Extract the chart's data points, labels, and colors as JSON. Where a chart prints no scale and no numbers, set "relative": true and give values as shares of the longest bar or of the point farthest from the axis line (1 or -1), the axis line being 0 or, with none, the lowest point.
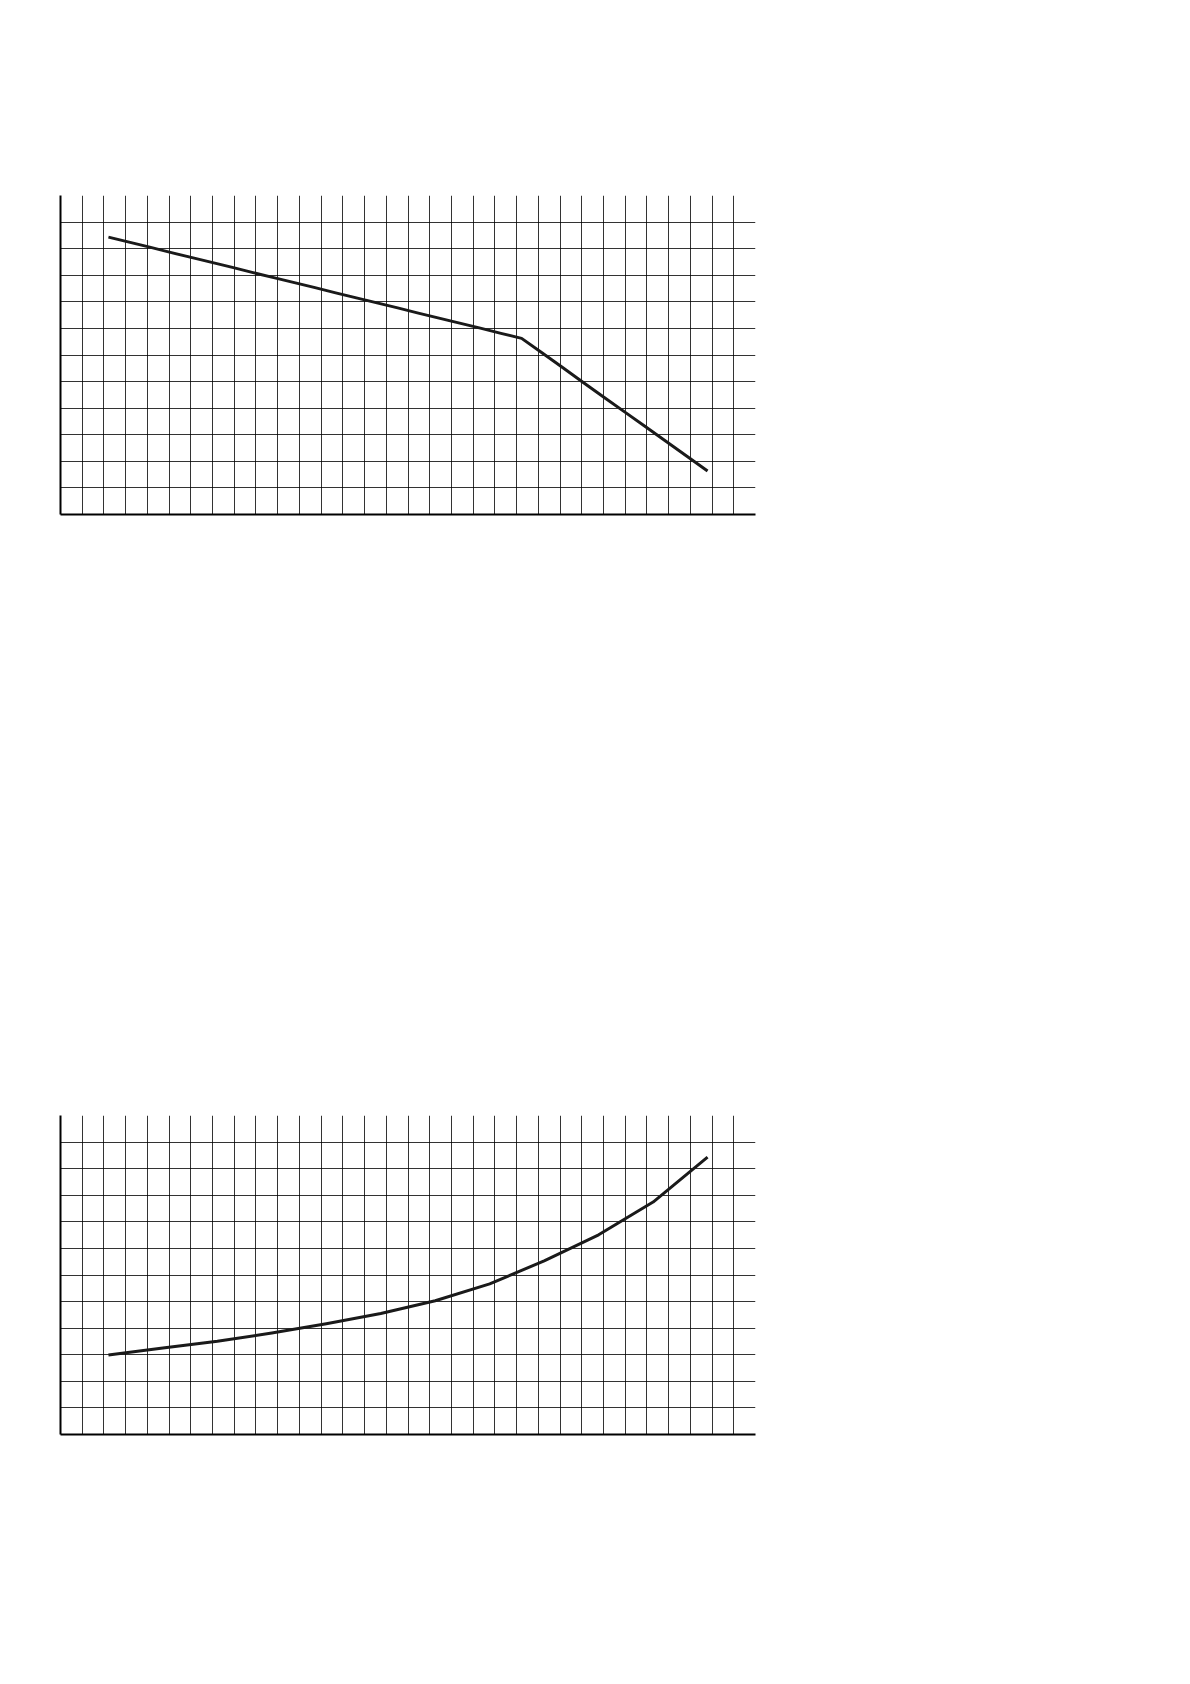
{
  "chart_data": [
    {
      "type": "line",
      "relative": true,
      "grid": true,
      "categories": [
        null,
        null,
        null,
        null,
        null,
        null,
        null,
        null,
        null,
        null,
        null,
        null,
        null,
        null,
        null,
        null,
        null,
        null,
        null,
        null,
        null,
        null,
        null,
        null,
        null,
        null,
        null,
        null,
        null,
        null
      ],
      "series": [
        {
          "color": "#1a1a1a",
          "values": [
            1.0,
            0.982,
            0.964,
            0.945,
            0.927,
            0.909,
            0.891,
            0.872,
            0.854,
            0.836,
            0.818,
            0.799,
            0.781,
            0.763,
            0.745,
            0.726,
            0.708,
            0.69,
            0.672,
            0.653,
            0.635,
            0.582,
            0.529,
            0.475,
            0.422,
            0.369,
            0.316,
            0.263,
            0.21,
            0.157
          ]
        }
      ]
    },
    {
      "type": "line",
      "relative": true,
      "grid": true,
      "categories": [
        null,
        null,
        null,
        null,
        null,
        null,
        null,
        null,
        null,
        null,
        null,
        null
      ],
      "series": [
        {
          "color": "#1a1a1a",
          "values": [
            0.287,
            0.312,
            0.336,
            0.366,
            0.399,
            0.436,
            0.482,
            0.543,
            0.626,
            0.72,
            0.838,
            1
          ]
        }
      ]
    }
  ]
}
